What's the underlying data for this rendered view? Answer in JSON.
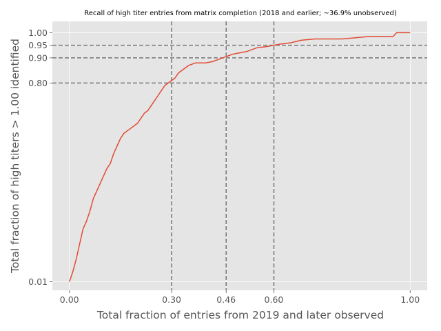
{
  "chart_data": {
    "type": "line",
    "title": "Recall of high titer entries from matrix completion (2018 and earlier; ~36.9% unobserved)",
    "xlabel": "Total fraction of entries from 2019 and later observed",
    "ylabel": "Total fraction of high titers > 1.00 identified",
    "xlim": [
      -0.05,
      1.05
    ],
    "ylim": [
      -0.024,
      1.045
    ],
    "grid": true,
    "x_ticks": [
      0.0,
      0.3,
      0.46,
      0.6,
      1.0
    ],
    "x_tick_labels": [
      "0.00",
      "0.30",
      "0.46",
      "0.60",
      "1.00"
    ],
    "y_ticks": [
      0.01,
      0.8,
      0.9,
      0.95,
      1.0
    ],
    "y_tick_labels": [
      "0.01",
      "0.80",
      "0.90",
      "0.95",
      "1.00"
    ],
    "reference_lines": {
      "vertical": [
        0.3,
        0.46,
        0.6
      ],
      "horizontal": [
        0.8,
        0.9,
        0.95
      ],
      "style": "dashed",
      "color": "#777777"
    },
    "series": [
      {
        "color": "#E24A33",
        "x": [
          0.0,
          0.01,
          0.02,
          0.03,
          0.04,
          0.05,
          0.06,
          0.07,
          0.08,
          0.09,
          0.1,
          0.11,
          0.12,
          0.13,
          0.14,
          0.15,
          0.16,
          0.17,
          0.18,
          0.19,
          0.2,
          0.21,
          0.22,
          0.23,
          0.24,
          0.25,
          0.26,
          0.27,
          0.28,
          0.29,
          0.3,
          0.31,
          0.32,
          0.33,
          0.34,
          0.35,
          0.36,
          0.37,
          0.38,
          0.4,
          0.42,
          0.43,
          0.44,
          0.45,
          0.46,
          0.47,
          0.48,
          0.5,
          0.52,
          0.53,
          0.55,
          0.58,
          0.6,
          0.62,
          0.65,
          0.68,
          0.72,
          0.76,
          0.8,
          0.84,
          0.88,
          0.95,
          0.96,
          1.0
        ],
        "y": [
          0.01,
          0.05,
          0.1,
          0.16,
          0.22,
          0.25,
          0.29,
          0.34,
          0.37,
          0.4,
          0.43,
          0.46,
          0.48,
          0.52,
          0.55,
          0.58,
          0.6,
          0.61,
          0.62,
          0.63,
          0.64,
          0.66,
          0.68,
          0.69,
          0.71,
          0.73,
          0.75,
          0.77,
          0.79,
          0.8,
          0.81,
          0.82,
          0.84,
          0.85,
          0.86,
          0.87,
          0.875,
          0.88,
          0.88,
          0.88,
          0.885,
          0.89,
          0.895,
          0.9,
          0.905,
          0.91,
          0.915,
          0.92,
          0.925,
          0.93,
          0.94,
          0.945,
          0.95,
          0.955,
          0.96,
          0.97,
          0.975,
          0.975,
          0.975,
          0.98,
          0.985,
          0.985,
          1.0,
          1.0
        ]
      }
    ]
  }
}
